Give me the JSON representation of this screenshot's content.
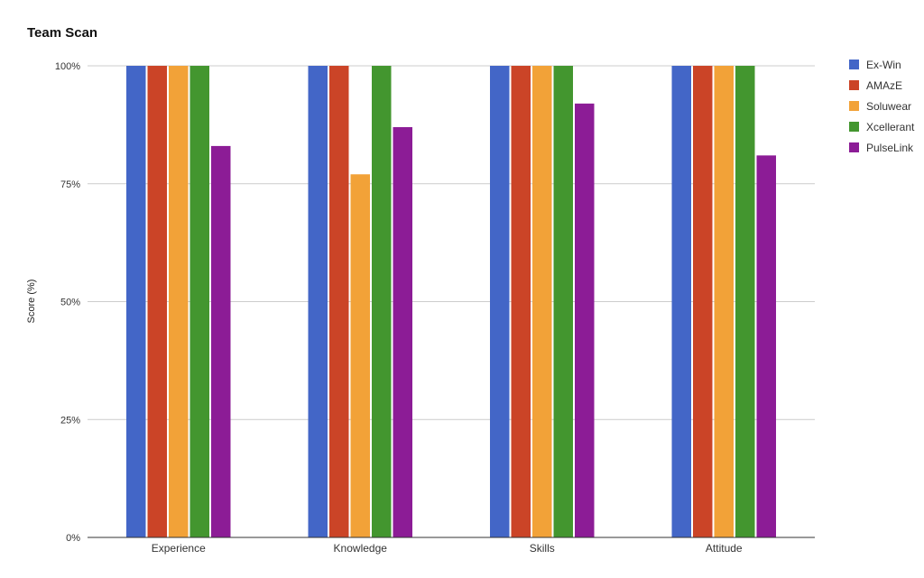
{
  "chart_data": {
    "type": "bar",
    "title": "Team Scan",
    "xlabel": "",
    "ylabel": "Score (%)",
    "categories": [
      "Experience",
      "Knowledge",
      "Skills",
      "Attitude"
    ],
    "ylim": [
      0,
      100
    ],
    "yticks": [
      "0%",
      "25%",
      "50%",
      "75%",
      "100%"
    ],
    "ytick_values": [
      0,
      25,
      50,
      75,
      100
    ],
    "grid": true,
    "legend_position": "right",
    "series": [
      {
        "name": "Ex-Win",
        "color": "#4366c7",
        "values": [
          100,
          100,
          100,
          100
        ]
      },
      {
        "name": "AMAzE",
        "color": "#cb4427",
        "values": [
          100,
          100,
          100,
          100
        ]
      },
      {
        "name": "Soluwear",
        "color": "#f2a238",
        "values": [
          100,
          77,
          100,
          100
        ]
      },
      {
        "name": "Xcellerant",
        "color": "#43962f",
        "values": [
          100,
          100,
          100,
          100
        ]
      },
      {
        "name": "PulseLink",
        "color": "#8c1c96",
        "values": [
          83,
          87,
          92,
          81
        ]
      }
    ]
  }
}
